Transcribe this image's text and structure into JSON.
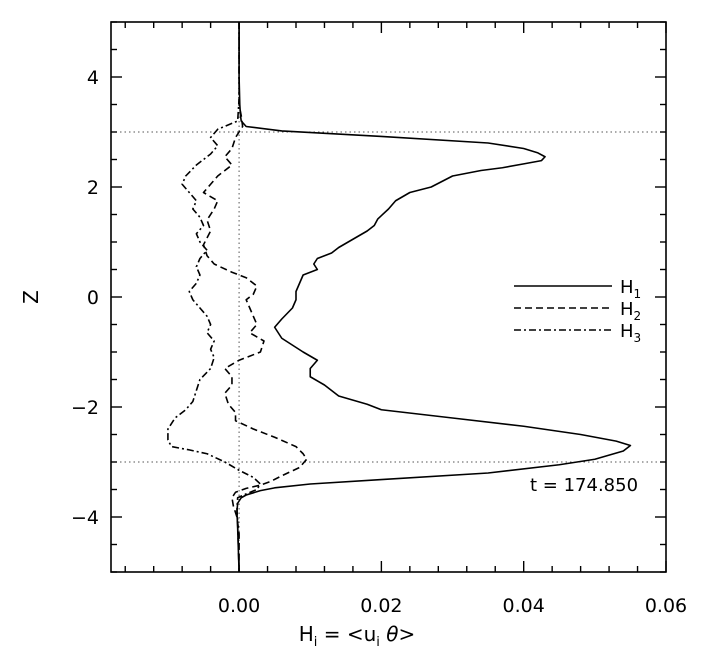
{
  "chart_data": {
    "type": "line",
    "xlabel": "Hi = <ui θ>",
    "xlabel_parts": {
      "H": "H",
      "i1": "i",
      "eq": " = <u",
      "i2": "i",
      "theta": " θ>"
    },
    "ylabel": "Z",
    "xlim": [
      -0.018,
      0.06
    ],
    "ylim": [
      -5,
      5
    ],
    "x_ticks": [
      0.0,
      0.02,
      0.04,
      0.06
    ],
    "x_tick_labels": [
      "0.00",
      "0.02",
      "0.04",
      "0.06"
    ],
    "y_ticks": [
      -4,
      -2,
      0,
      2,
      4
    ],
    "y_tick_labels": [
      "−4",
      "−2",
      "0",
      "2",
      "4"
    ],
    "reference_lines": {
      "x": [
        0.0
      ],
      "y": [
        3.0,
        -3.0
      ],
      "style": "dotted"
    },
    "legend_position": "right-middle",
    "annotation": "t = 174.850",
    "series": [
      {
        "name": "H1",
        "name_base": "H",
        "name_sub": "1",
        "style": "solid",
        "points": [
          [
            0.0,
            5.0
          ],
          [
            0.0,
            4.0
          ],
          [
            0.0001,
            3.5
          ],
          [
            0.0002,
            3.3
          ],
          [
            0.0003,
            3.2
          ],
          [
            0.001,
            3.1
          ],
          [
            0.006,
            3.02
          ],
          [
            0.02,
            2.92
          ],
          [
            0.035,
            2.8
          ],
          [
            0.04,
            2.7
          ],
          [
            0.042,
            2.62
          ],
          [
            0.043,
            2.55
          ],
          [
            0.0425,
            2.48
          ],
          [
            0.04,
            2.42
          ],
          [
            0.037,
            2.35
          ],
          [
            0.034,
            2.3
          ],
          [
            0.03,
            2.2
          ],
          [
            0.027,
            2.0
          ],
          [
            0.024,
            1.9
          ],
          [
            0.022,
            1.75
          ],
          [
            0.021,
            1.6
          ],
          [
            0.0195,
            1.42
          ],
          [
            0.019,
            1.3
          ],
          [
            0.018,
            1.2
          ],
          [
            0.016,
            1.05
          ],
          [
            0.014,
            0.9
          ],
          [
            0.013,
            0.8
          ],
          [
            0.011,
            0.7
          ],
          [
            0.0105,
            0.6
          ],
          [
            0.011,
            0.5
          ],
          [
            0.009,
            0.4
          ],
          [
            0.0085,
            0.25
          ],
          [
            0.008,
            0.1
          ],
          [
            0.008,
            -0.05
          ],
          [
            0.0075,
            -0.2
          ],
          [
            0.006,
            -0.4
          ],
          [
            0.005,
            -0.55
          ],
          [
            0.006,
            -0.75
          ],
          [
            0.009,
            -1.0
          ],
          [
            0.011,
            -1.15
          ],
          [
            0.01,
            -1.3
          ],
          [
            0.01,
            -1.45
          ],
          [
            0.012,
            -1.6
          ],
          [
            0.014,
            -1.8
          ],
          [
            0.018,
            -1.95
          ],
          [
            0.02,
            -2.05
          ],
          [
            0.03,
            -2.2
          ],
          [
            0.04,
            -2.35
          ],
          [
            0.048,
            -2.5
          ],
          [
            0.053,
            -2.62
          ],
          [
            0.055,
            -2.7
          ],
          [
            0.054,
            -2.8
          ],
          [
            0.05,
            -2.95
          ],
          [
            0.045,
            -3.05
          ],
          [
            0.035,
            -3.2
          ],
          [
            0.02,
            -3.32
          ],
          [
            0.01,
            -3.4
          ],
          [
            0.005,
            -3.47
          ],
          [
            0.003,
            -3.52
          ],
          [
            0.002,
            -3.56
          ],
          [
            0.001,
            -3.6
          ],
          [
            0.0003,
            -3.65
          ],
          [
            -0.0002,
            -3.75
          ],
          [
            -0.0003,
            -3.9
          ],
          [
            -0.0002,
            -4.2
          ],
          [
            0.0,
            -5.0
          ]
        ]
      },
      {
        "name": "H2",
        "name_base": "H",
        "name_sub": "2",
        "style": "dashed",
        "points": [
          [
            0.0,
            5.0
          ],
          [
            0.0,
            3.5
          ],
          [
            0.0003,
            3.3
          ],
          [
            0.0005,
            3.1
          ],
          [
            -0.0005,
            2.9
          ],
          [
            -0.001,
            2.7
          ],
          [
            -0.002,
            2.55
          ],
          [
            -0.001,
            2.4
          ],
          [
            -0.003,
            2.2
          ],
          [
            -0.004,
            2.05
          ],
          [
            -0.005,
            1.9
          ],
          [
            -0.003,
            1.75
          ],
          [
            -0.0035,
            1.6
          ],
          [
            -0.0045,
            1.4
          ],
          [
            -0.004,
            1.2
          ],
          [
            -0.005,
            0.95
          ],
          [
            -0.0045,
            0.75
          ],
          [
            -0.0035,
            0.6
          ],
          [
            -0.001,
            0.45
          ],
          [
            0.001,
            0.35
          ],
          [
            0.0025,
            0.2
          ],
          [
            0.002,
            0.05
          ],
          [
            0.001,
            -0.05
          ],
          [
            0.0015,
            -0.2
          ],
          [
            0.002,
            -0.35
          ],
          [
            0.0025,
            -0.5
          ],
          [
            0.0015,
            -0.65
          ],
          [
            0.0035,
            -0.8
          ],
          [
            0.003,
            -1.0
          ],
          [
            0.0,
            -1.15
          ],
          [
            -0.002,
            -1.3
          ],
          [
            -0.001,
            -1.45
          ],
          [
            -0.001,
            -1.6
          ],
          [
            -0.002,
            -1.75
          ],
          [
            -0.0015,
            -1.95
          ],
          [
            -0.0005,
            -2.1
          ],
          [
            -0.0005,
            -2.25
          ],
          [
            0.002,
            -2.4
          ],
          [
            0.005,
            -2.55
          ],
          [
            0.008,
            -2.72
          ],
          [
            0.009,
            -2.85
          ],
          [
            0.0095,
            -2.95
          ],
          [
            0.0085,
            -3.1
          ],
          [
            0.006,
            -3.25
          ],
          [
            0.0045,
            -3.35
          ],
          [
            0.003,
            -3.42
          ],
          [
            0.001,
            -3.48
          ],
          [
            -0.0005,
            -3.55
          ],
          [
            -0.001,
            -3.65
          ],
          [
            -0.0008,
            -3.8
          ],
          [
            -0.0003,
            -4.0
          ],
          [
            0.0,
            -4.3
          ],
          [
            0.0,
            -5.0
          ]
        ]
      },
      {
        "name": "H3",
        "name_base": "H",
        "name_sub": "3",
        "style": "dashdot",
        "points": [
          [
            0.0,
            5.0
          ],
          [
            0.0,
            3.6
          ],
          [
            -0.0002,
            3.2
          ],
          [
            -0.003,
            3.05
          ],
          [
            -0.004,
            2.9
          ],
          [
            -0.003,
            2.75
          ],
          [
            -0.004,
            2.6
          ],
          [
            -0.006,
            2.4
          ],
          [
            -0.0075,
            2.2
          ],
          [
            -0.008,
            2.05
          ],
          [
            -0.007,
            1.9
          ],
          [
            -0.006,
            1.75
          ],
          [
            -0.0065,
            1.6
          ],
          [
            -0.0055,
            1.45
          ],
          [
            -0.005,
            1.3
          ],
          [
            -0.006,
            1.15
          ],
          [
            -0.0055,
            1.0
          ],
          [
            -0.0045,
            0.85
          ],
          [
            -0.0055,
            0.7
          ],
          [
            -0.006,
            0.55
          ],
          [
            -0.0055,
            0.4
          ],
          [
            -0.006,
            0.25
          ],
          [
            -0.007,
            0.1
          ],
          [
            -0.0065,
            -0.05
          ],
          [
            -0.0055,
            -0.2
          ],
          [
            -0.0045,
            -0.35
          ],
          [
            -0.004,
            -0.5
          ],
          [
            -0.0045,
            -0.65
          ],
          [
            -0.0035,
            -0.8
          ],
          [
            -0.004,
            -0.95
          ],
          [
            -0.0035,
            -1.1
          ],
          [
            -0.004,
            -1.3
          ],
          [
            -0.0055,
            -1.5
          ],
          [
            -0.006,
            -1.7
          ],
          [
            -0.0065,
            -1.9
          ],
          [
            -0.0075,
            -2.05
          ],
          [
            -0.009,
            -2.2
          ],
          [
            -0.01,
            -2.4
          ],
          [
            -0.01,
            -2.6
          ],
          [
            -0.0095,
            -2.72
          ],
          [
            -0.007,
            -2.78
          ],
          [
            -0.0045,
            -2.85
          ],
          [
            -0.002,
            -3.0
          ],
          [
            0.0,
            -3.15
          ],
          [
            0.002,
            -3.28
          ],
          [
            0.003,
            -3.4
          ],
          [
            0.0025,
            -3.5
          ],
          [
            0.001,
            -3.58
          ],
          [
            -0.0002,
            -3.65
          ],
          [
            -0.0003,
            -3.85
          ],
          [
            -0.0002,
            -4.1
          ],
          [
            0.0,
            -5.0
          ]
        ]
      }
    ]
  }
}
